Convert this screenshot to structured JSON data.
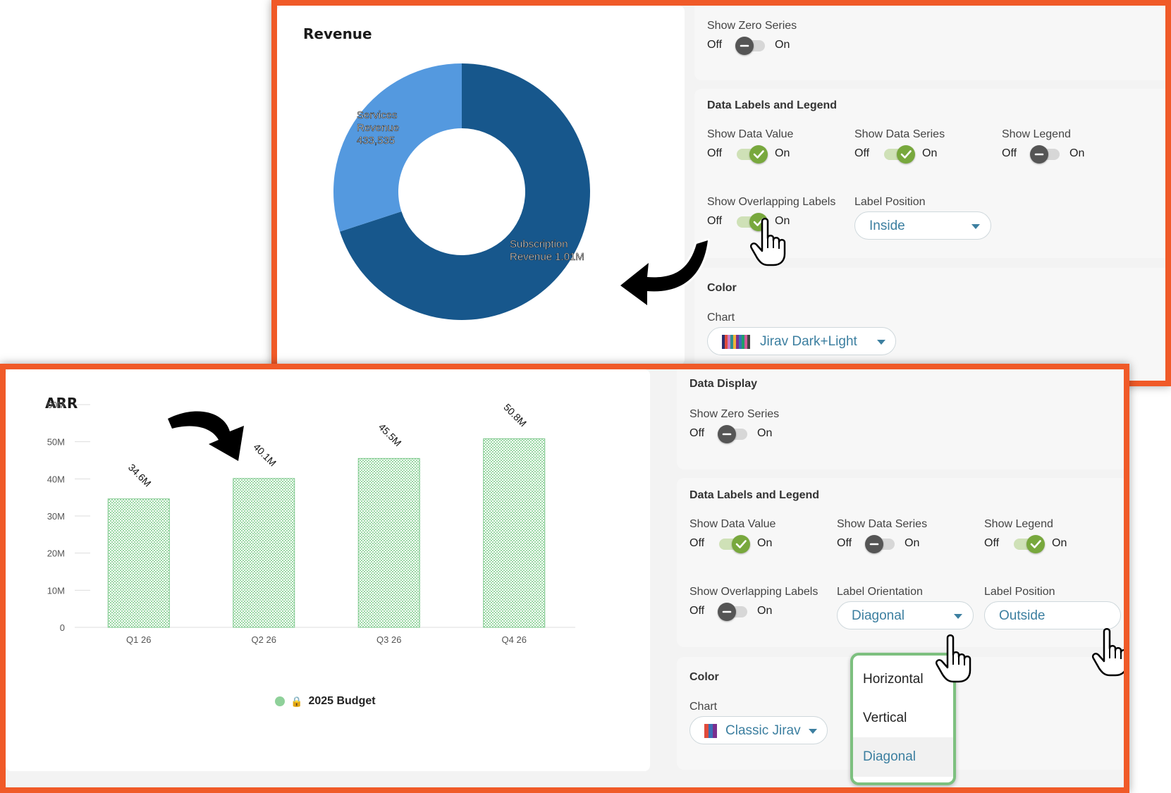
{
  "top": {
    "chart": {
      "title": "Revenue",
      "slices": [
        {
          "label_lines": [
            "Services",
            "Revenue",
            "433,535"
          ],
          "color": "#5499df"
        },
        {
          "label_lines": [
            "Subscription",
            "Revenue 1.01M"
          ],
          "color": "#17578c"
        }
      ]
    },
    "data_display": {
      "show_zero_series": {
        "label": "Show Zero Series",
        "off": "Off",
        "on": "On",
        "state": "off"
      }
    },
    "labels_legend": {
      "title": "Data Labels and Legend",
      "show_data_value": {
        "label": "Show Data Value",
        "off": "Off",
        "on": "On",
        "state": "on"
      },
      "show_data_series": {
        "label": "Show Data Series",
        "off": "Off",
        "on": "On",
        "state": "on"
      },
      "show_legend": {
        "label": "Show Legend",
        "off": "Off",
        "on": "On",
        "state": "off"
      },
      "show_overlapping": {
        "label": "Show Overlapping Labels",
        "off": "Off",
        "on": "On",
        "state": "on"
      },
      "label_position": {
        "label": "Label Position",
        "value": "Inside"
      }
    },
    "color": {
      "title": "Color",
      "chart_label": "Chart",
      "palette": "Jirav Dark+Light",
      "swatch_colors": [
        "#2b2d6e",
        "#e04b3c",
        "#c77dc9",
        "#2f8f8f",
        "#f0b33a",
        "#7a2f8f",
        "#3b6fb6",
        "#1f9e6b",
        "#d35a9a",
        "#444444"
      ]
    }
  },
  "bottom": {
    "chart": {
      "title": "ARR",
      "legend_label": "2025 Budget",
      "bar_color": "#8fd19a"
    },
    "chart_data": {
      "type": "bar",
      "categories": [
        "Q1 26",
        "Q2 26",
        "Q3 26",
        "Q4 26"
      ],
      "series": [
        {
          "name": "2025 Budget",
          "values": [
            34.6,
            40.1,
            45.5,
            50.8
          ]
        }
      ],
      "data_labels": [
        "34.6M",
        "40.1M",
        "45.5M",
        "50.8M"
      ],
      "y_ticks": [
        "0",
        "10M",
        "20M",
        "30M",
        "40M",
        "50M",
        "60M"
      ],
      "ylim": [
        0,
        60
      ],
      "title": "ARR",
      "label_orientation": "diagonal",
      "legend_position": "bottom"
    },
    "data_display": {
      "title": "Data Display",
      "show_zero_series": {
        "label": "Show Zero Series",
        "off": "Off",
        "on": "On",
        "state": "off"
      }
    },
    "labels_legend": {
      "title": "Data Labels and Legend",
      "show_data_value": {
        "label": "Show Data Value",
        "off": "Off",
        "on": "On",
        "state": "on"
      },
      "show_data_series": {
        "label": "Show Data Series",
        "off": "Off",
        "on": "On",
        "state": "off"
      },
      "show_legend": {
        "label": "Show Legend",
        "off": "Off",
        "on": "On",
        "state": "on"
      },
      "show_overlapping": {
        "label": "Show Overlapping Labels",
        "off": "Off",
        "on": "On",
        "state": "off"
      },
      "label_orientation": {
        "label": "Label Orientation",
        "value": "Diagonal"
      },
      "label_position": {
        "label": "Label Position",
        "value": "Outside"
      }
    },
    "orientation_menu": {
      "options": [
        "Horizontal",
        "Vertical",
        "Diagonal"
      ],
      "selected": "Diagonal"
    },
    "color": {
      "title": "Color",
      "chart_label": "Chart",
      "palette": "Classic Jirav",
      "swatch_colors": [
        "#e04b3c",
        "#3b6fb6",
        "#7a2f8f"
      ]
    }
  }
}
